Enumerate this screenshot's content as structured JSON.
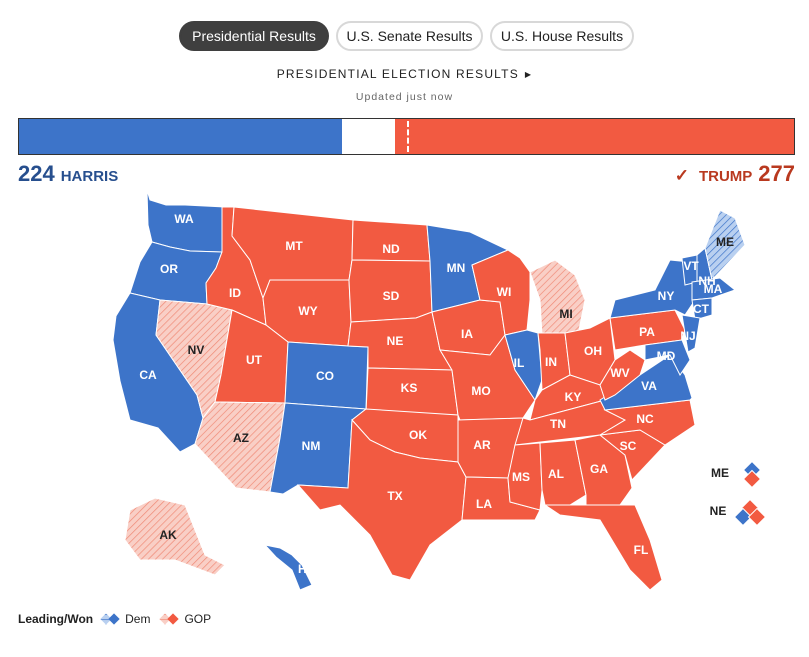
{
  "tabs": [
    {
      "label": "Presidential Results",
      "active": true
    },
    {
      "label": "U.S. Senate Results",
      "active": false
    },
    {
      "label": "U.S. House Results",
      "active": false
    }
  ],
  "header": {
    "title": "PRESIDENTIAL ELECTION RESULTS",
    "updated": "Updated just now"
  },
  "totals": {
    "dem": {
      "count": "224",
      "name": "HARRIS",
      "votes": 224
    },
    "gop": {
      "count": "277",
      "name": "TRUMP",
      "votes": 277,
      "won": true
    },
    "total_votes": 538
  },
  "colors": {
    "dem": "#3d74c9",
    "gop": "#f25a41",
    "dem_lean": "#b9d0f0",
    "gop_lean": "#f6b3a6"
  },
  "states": {
    "WA": "dem",
    "OR": "dem",
    "CA": "dem",
    "NV": "gop_lean",
    "ID": "gop",
    "MT": "gop",
    "WY": "gop",
    "UT": "gop",
    "AZ": "gop_lean",
    "CO": "dem",
    "NM": "dem",
    "ND": "gop",
    "SD": "gop",
    "NE": "gop",
    "KS": "gop",
    "OK": "gop",
    "TX": "gop",
    "MN": "dem",
    "IA": "gop",
    "MO": "gop",
    "AR": "gop",
    "LA": "gop",
    "WI": "gop",
    "IL": "dem",
    "MI": "gop_lean",
    "IN": "gop",
    "OH": "gop",
    "KY": "gop",
    "TN": "gop",
    "MS": "gop",
    "AL": "gop",
    "GA": "gop",
    "FL": "gop",
    "SC": "gop",
    "NC": "gop",
    "VA": "dem",
    "WV": "gop",
    "PA": "gop",
    "NY": "dem",
    "VT": "dem",
    "NH": "dem",
    "ME": "dem_lean",
    "MA": "dem",
    "CT": "dem",
    "NJ": "dem",
    "MD": "dem",
    "AK": "gop_lean",
    "HI": "dem"
  },
  "districts": {
    "ME": {
      "label": "ME",
      "splits": [
        "dem",
        "gop"
      ]
    },
    "NE": {
      "label": "NE",
      "splits": [
        "gop",
        "dem",
        "gop"
      ]
    }
  },
  "legend": {
    "label": "Leading/Won",
    "dem": "Dem",
    "gop": "GOP"
  }
}
